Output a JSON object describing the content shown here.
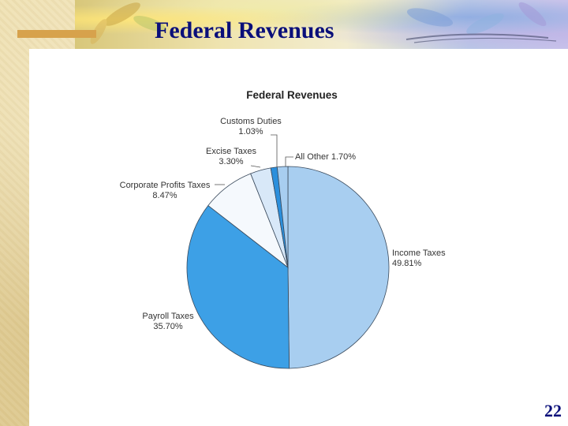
{
  "slide": {
    "title": "Federal Revenues",
    "page_number": "22"
  },
  "colors": {
    "title_text": "#0a0f7a",
    "slice_income": "#a8cef0",
    "slice_payroll": "#3da0e6",
    "slice_corporate": "#f5f9fd",
    "slice_excise": "#d8e8f8",
    "slice_customs": "#2b8fdc",
    "slice_other": "#a8cef0",
    "slice_border": "#3a4a5c"
  },
  "chart_data": {
    "type": "pie",
    "title": "Federal Revenues",
    "slices": [
      {
        "label": "Income Taxes",
        "value_label": "49.81%",
        "value": 49.81
      },
      {
        "label": "Payroll Taxes",
        "value_label": "35.70%",
        "value": 35.7
      },
      {
        "label": "Corporate Profits Taxes",
        "value_label": "8.47%",
        "value": 8.47
      },
      {
        "label": "Excise Taxes",
        "value_label": "3.30%",
        "value": 3.3
      },
      {
        "label": "Customs Duties",
        "value_label": "1.03%",
        "value": 1.03
      },
      {
        "label": "All Other",
        "value_label": "1.70%",
        "value": 1.7
      }
    ],
    "legend": "none",
    "start": "12 o'clock, clockwise"
  }
}
